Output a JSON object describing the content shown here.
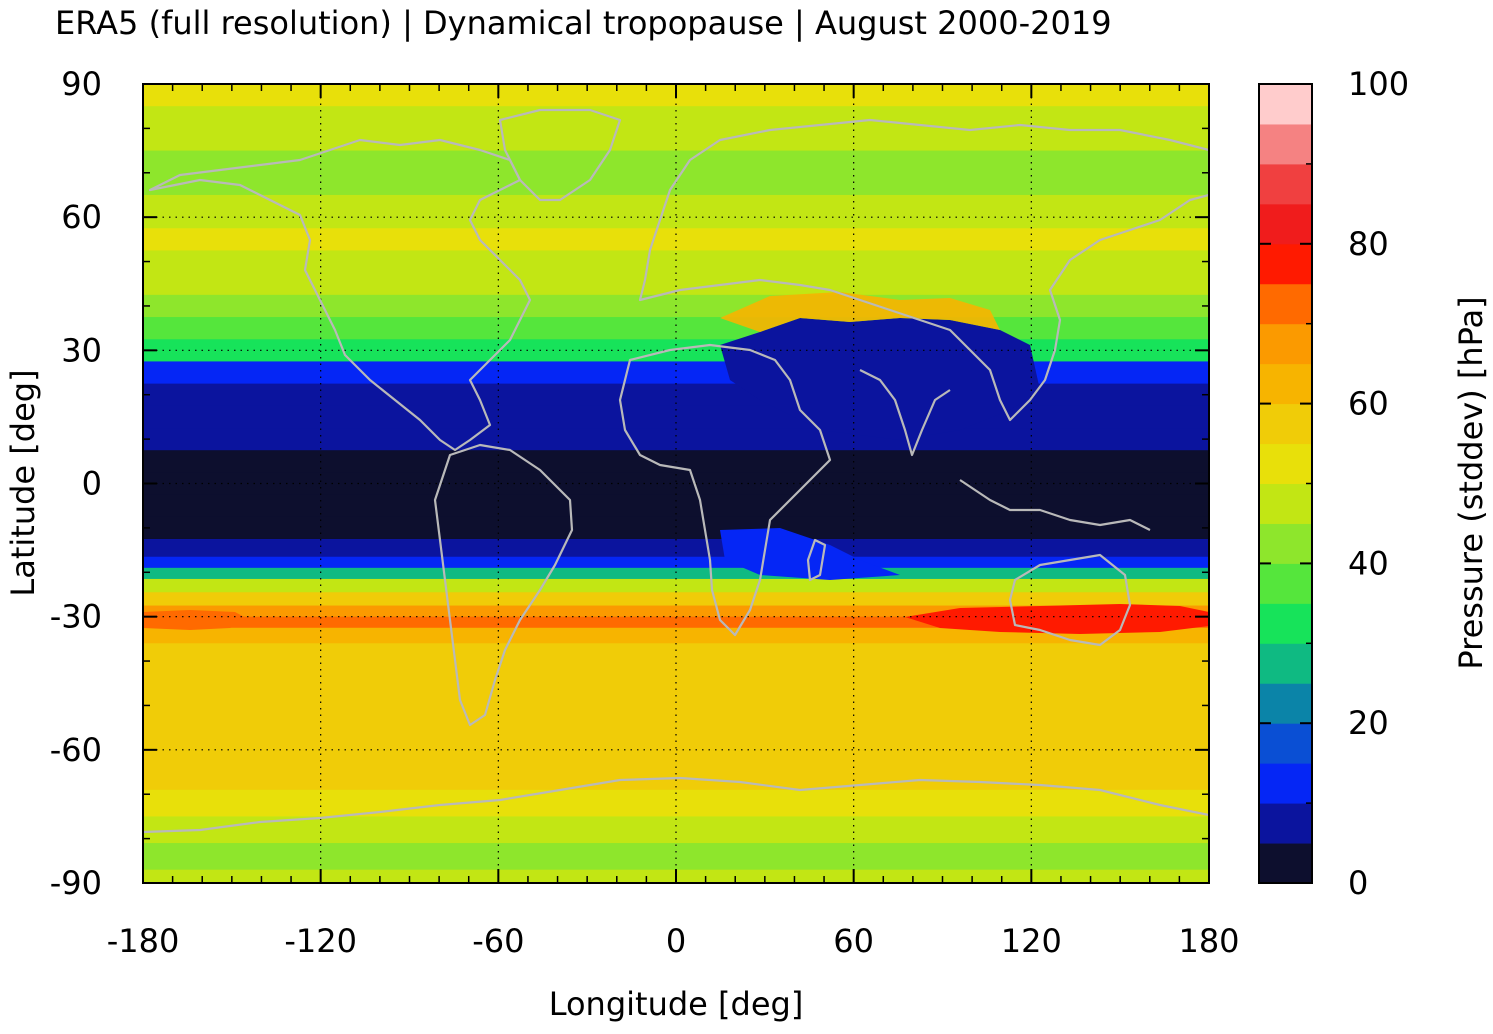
{
  "chart_data": {
    "type": "heatmap",
    "title": "ERA5 (full resolution) | Dynamical tropopause | August 2000-2019",
    "xlabel": "Longitude [deg]",
    "ylabel": "Latitude [deg]",
    "colorbar_label": "Pressure (stddev) [hPa]",
    "xlim": [
      -180,
      180
    ],
    "ylim": [
      -90,
      90
    ],
    "x_ticks": [
      "-180",
      "-120",
      "-60",
      "0",
      "60",
      "120",
      "180"
    ],
    "y_ticks": [
      "90",
      "60",
      "30",
      "0",
      "-30",
      "-60",
      "-90"
    ],
    "colorbar_range": [
      0,
      100
    ],
    "colorbar_ticks": [
      "100",
      "80",
      "60",
      "40",
      "20",
      "0"
    ],
    "grid": true,
    "colorbar_colors": [
      "#0d0f2e",
      "#0b149e",
      "#0526f5",
      "#0a4fd4",
      "#0b84a8",
      "#0fba82",
      "#17e35a",
      "#55e63c",
      "#8ee62c",
      "#c2e614",
      "#e8e00a",
      "#f0cc08",
      "#f7b400",
      "#fb9a00",
      "#ff6a00",
      "#ff1a00",
      "#f01c1c",
      "#f04040",
      "#f58282",
      "#ffcccc"
    ],
    "zonal_profile": [
      {
        "lat": 90,
        "value": 50
      },
      {
        "lat": 80,
        "value": 46
      },
      {
        "lat": 70,
        "value": 44
      },
      {
        "lat": 60,
        "value": 45
      },
      {
        "lat": 55,
        "value": 53
      },
      {
        "lat": 50,
        "value": 49
      },
      {
        "lat": 45,
        "value": 46
      },
      {
        "lat": 40,
        "value": 43
      },
      {
        "lat": 35,
        "value": 38
      },
      {
        "lat": 30,
        "value": 30
      },
      {
        "lat": 25,
        "value": 12
      },
      {
        "lat": 20,
        "value": 8
      },
      {
        "lat": 15,
        "value": 6
      },
      {
        "lat": 10,
        "value": 5
      },
      {
        "lat": 5,
        "value": 3
      },
      {
        "lat": 0,
        "value": 2
      },
      {
        "lat": -5,
        "value": 2
      },
      {
        "lat": -10,
        "value": 4
      },
      {
        "lat": -15,
        "value": 8
      },
      {
        "lat": -18,
        "value": 14
      },
      {
        "lat": -20,
        "value": 28
      },
      {
        "lat": -23,
        "value": 45
      },
      {
        "lat": -26,
        "value": 58
      },
      {
        "lat": -29,
        "value": 68
      },
      {
        "lat": -31,
        "value": 70
      },
      {
        "lat": -34,
        "value": 64
      },
      {
        "lat": -38,
        "value": 58
      },
      {
        "lat": -45,
        "value": 56
      },
      {
        "lat": -52,
        "value": 58
      },
      {
        "lat": -60,
        "value": 56
      },
      {
        "lat": -66,
        "value": 58
      },
      {
        "lat": -72,
        "value": 52
      },
      {
        "lat": -78,
        "value": 45
      },
      {
        "lat": -84,
        "value": 43
      },
      {
        "lat": -90,
        "value": 46
      }
    ]
  }
}
